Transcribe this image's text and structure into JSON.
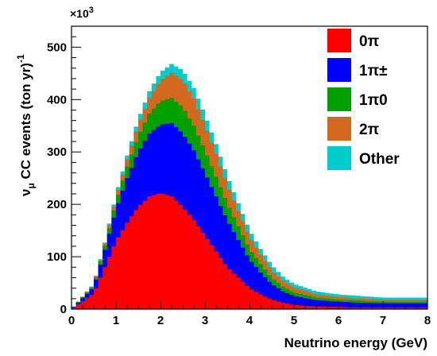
{
  "chart_data": {
    "type": "area",
    "stacked": true,
    "histogram": true,
    "xlabel": "Neutrino energy (GeV)",
    "ylabel": "νμ CC events (ton yr)-1",
    "ylabel_parts": {
      "nu": "ν",
      "mu": "μ",
      "main": " CC events (ton yr)",
      "sup": "-1"
    },
    "y_multiplier": {
      "base": "×10",
      "exp": "3"
    },
    "xlim": [
      0,
      8
    ],
    "ylim": [
      0,
      540
    ],
    "xticks": [
      0,
      1,
      2,
      3,
      4,
      5,
      6,
      7,
      8
    ],
    "yticks": [
      0,
      100,
      200,
      300,
      400,
      500
    ],
    "legend_position": "top-right",
    "x": [
      0,
      0.5,
      0.75,
      1,
      1.25,
      1.5,
      1.75,
      2,
      2.25,
      2.5,
      2.75,
      3,
      3.25,
      3.5,
      3.75,
      4,
      4.25,
      4.5,
      4.75,
      5,
      5.5,
      6,
      6.5,
      7,
      7.5,
      8
    ],
    "series": [
      {
        "name": "0π",
        "color": "#ff0000",
        "values": [
          0,
          30,
          80,
          130,
          165,
          195,
          215,
          222,
          215,
          195,
          170,
          140,
          110,
          80,
          60,
          40,
          28,
          18,
          12,
          8,
          5,
          4,
          3,
          3,
          3,
          3
        ]
      },
      {
        "name": "1π±",
        "color": "#0000ff",
        "values": [
          0,
          12,
          33,
          60,
          85,
          105,
          120,
          130,
          140,
          140,
          133,
          120,
          105,
          90,
          72,
          55,
          42,
          30,
          22,
          17,
          12,
          10,
          9,
          8,
          8,
          8
        ]
      },
      {
        "name": "1π0",
        "color": "#00a000",
        "values": [
          0,
          3,
          8,
          15,
          22,
          30,
          38,
          45,
          48,
          50,
          47,
          43,
          38,
          32,
          26,
          20,
          16,
          12,
          9,
          7,
          5,
          4,
          4,
          3,
          3,
          3
        ]
      },
      {
        "name": "2π",
        "color": "#d2691e",
        "values": [
          0,
          2,
          4,
          8,
          14,
          22,
          30,
          40,
          48,
          52,
          52,
          48,
          43,
          36,
          29,
          23,
          18,
          14,
          11,
          9,
          6,
          5,
          4,
          4,
          4,
          4
        ]
      },
      {
        "name": "Other",
        "color": "#00cccc",
        "values": [
          0,
          1,
          2,
          5,
          7,
          10,
          13,
          15,
          17,
          19,
          20,
          20,
          19,
          17,
          15,
          13,
          11,
          10,
          8,
          7,
          6,
          5,
          5,
          4,
          4,
          4
        ]
      }
    ]
  }
}
